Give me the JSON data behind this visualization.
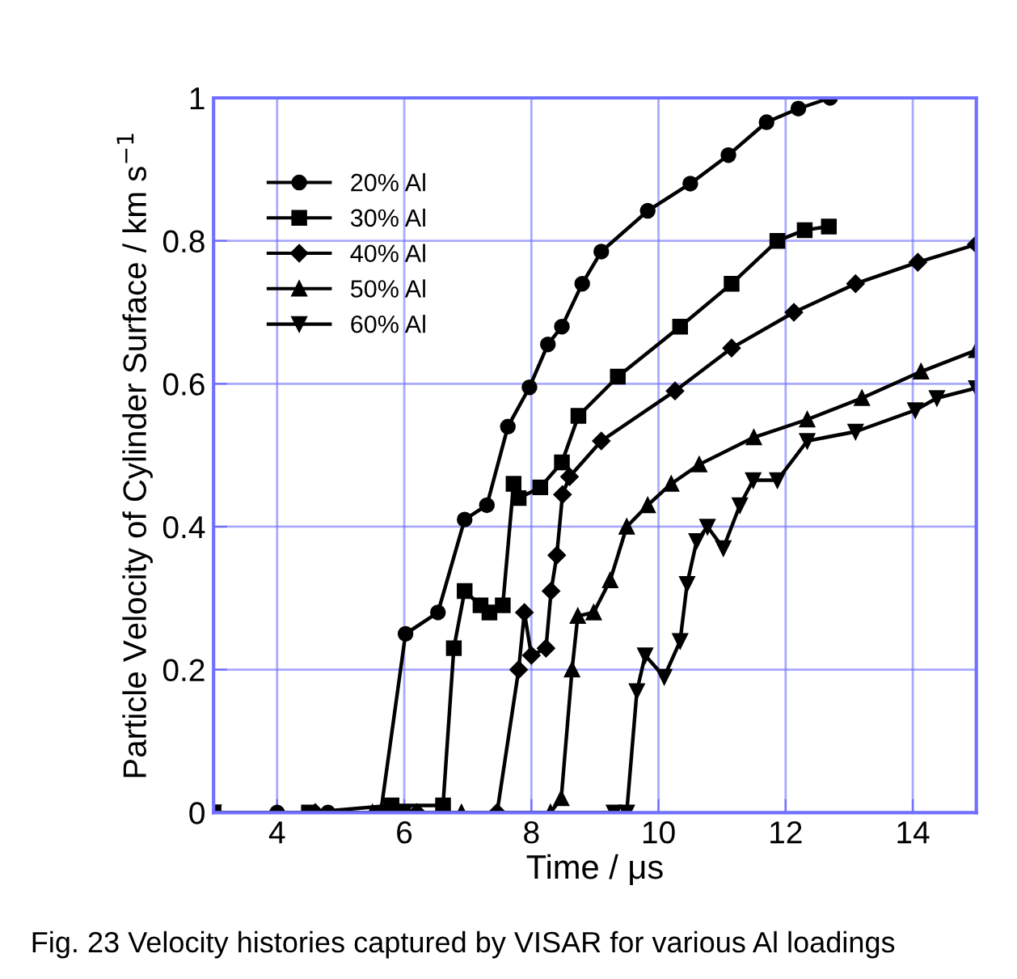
{
  "chart_data": {
    "type": "line",
    "xlabel": "Time / μs",
    "ylabel": "Particle Velocity of Cylinder Surface / km s$^{−1}$",
    "xlim": [
      3,
      15
    ],
    "ylim": [
      0,
      1
    ],
    "xticks": [
      4,
      6,
      8,
      10,
      12,
      14
    ],
    "yticks": [
      0,
      0.2,
      0.4,
      0.6,
      0.8,
      1
    ],
    "grid": true,
    "legend": "top left",
    "line_style": "solid",
    "annotations": [
      "Fig. 23 Velocity histories captured by VISAR for various Al loadings"
    ],
    "series": [
      {
        "name": "20% Al",
        "color": "#000000",
        "marker": "circle",
        "x": [
          3,
          4,
          4.8,
          5.63,
          6.02,
          6.53,
          6.95,
          7.3,
          7.63,
          7.97,
          8.26,
          8.48,
          8.8,
          9.1,
          9.83,
          10.5,
          11.1,
          11.7,
          12.2,
          12.7
        ],
        "values": [
          0,
          0,
          0,
          0,
          0.25,
          0.28,
          0.41,
          0.43,
          0.54,
          0.595,
          0.655,
          0.68,
          0.74,
          0.785,
          0.842,
          0.88,
          0.92,
          0.966,
          0.985,
          1.0
        ]
      },
      {
        "name": "30% Al",
        "color": "#000000",
        "marker": "square",
        "x": [
          3,
          4.5,
          5.8,
          6.61,
          6.78,
          6.95,
          7.2,
          7.34,
          7.55,
          7.72,
          7.8,
          8.14,
          8.48,
          8.74,
          9.36,
          10.34,
          11.15,
          11.87,
          12.3,
          12.68
        ],
        "values": [
          0,
          0,
          0.01,
          0.01,
          0.23,
          0.31,
          0.29,
          0.28,
          0.29,
          0.46,
          0.44,
          0.455,
          0.49,
          0.555,
          0.61,
          0.68,
          0.74,
          0.8,
          0.815,
          0.82
        ]
      },
      {
        "name": "40% Al",
        "color": "#000000",
        "marker": "diamond",
        "x": [
          3,
          4.6,
          6.2,
          7.46,
          7.8,
          7.89,
          8.0,
          8.23,
          8.31,
          8.4,
          8.49,
          8.6,
          9.1,
          10.26,
          11.15,
          12.13,
          13.1,
          14.08,
          15
        ],
        "values": [
          0,
          0,
          0,
          0,
          0.2,
          0.28,
          0.22,
          0.23,
          0.31,
          0.36,
          0.445,
          0.47,
          0.52,
          0.59,
          0.65,
          0.7,
          0.74,
          0.77,
          0.795
        ]
      },
      {
        "name": "50% Al",
        "color": "#000000",
        "marker": "triangle",
        "x": [
          3,
          5.5,
          6.9,
          8.3,
          8.47,
          8.64,
          8.73,
          8.98,
          9.24,
          9.5,
          9.83,
          10.2,
          10.64,
          11.5,
          12.34,
          13.2,
          14.13,
          15
        ],
        "values": [
          0,
          0,
          0,
          0,
          0.02,
          0.2,
          0.275,
          0.28,
          0.325,
          0.4,
          0.43,
          0.46,
          0.487,
          0.525,
          0.55,
          0.58,
          0.617,
          0.647
        ]
      },
      {
        "name": "60% Al",
        "color": "#000000",
        "marker": "triangle_down",
        "x": [
          3,
          6,
          9.3,
          9.5,
          9.66,
          9.79,
          10.09,
          10.34,
          10.45,
          10.6,
          10.77,
          11.02,
          11.28,
          11.49,
          11.87,
          12.34,
          13.1,
          14.04,
          14.38,
          15
        ],
        "values": [
          0,
          0,
          0,
          0,
          0.17,
          0.22,
          0.19,
          0.24,
          0.32,
          0.38,
          0.4,
          0.37,
          0.43,
          0.465,
          0.465,
          0.52,
          0.533,
          0.563,
          0.58,
          0.594
        ]
      }
    ]
  }
}
